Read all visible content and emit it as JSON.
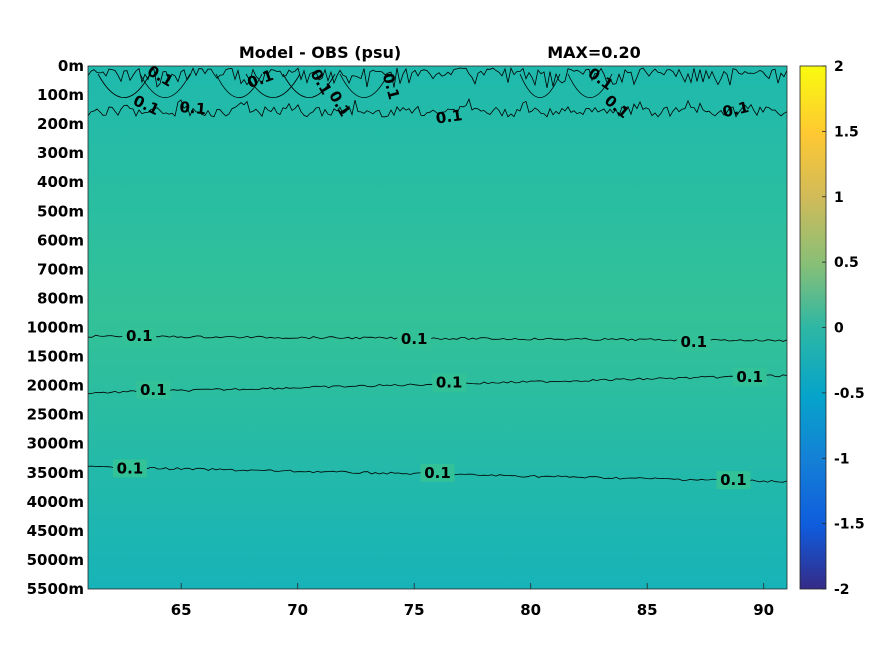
{
  "chart_data": {
    "type": "heatmap",
    "title": "Model - OBS (psu)",
    "annotation": "MAX=0.20",
    "xlim": [
      61,
      91
    ],
    "x_ticks": [
      65,
      70,
      75,
      80,
      85,
      90
    ],
    "y_tick_labels": [
      "0m",
      "100m",
      "200m",
      "300m",
      "400m",
      "500m",
      "600m",
      "700m",
      "800m",
      "1000m",
      "1500m",
      "2000m",
      "2500m",
      "3000m",
      "3500m",
      "4000m",
      "4500m",
      "5000m",
      "5500m"
    ],
    "colorbar": {
      "colormap": "parula",
      "clim": [
        -2,
        2
      ],
      "ticks": [
        "2",
        "1.5",
        "1",
        "0.5",
        "0",
        "-0.5",
        "-1",
        "-1.5",
        "-2"
      ]
    },
    "field_colors": {
      "surface": "#1fb9ad",
      "middle": "#33c197",
      "deep": "#17b3b8"
    },
    "contours": [
      {
        "level": 0.1,
        "style": "noisy",
        "depth_label": "0m-200m",
        "labels": [
          {
            "text": "0.1",
            "x": 63.5,
            "depth_index": 1.35,
            "angle": 25
          },
          {
            "text": "0.1",
            "x": 65.5,
            "depth_index": 1.45,
            "angle": 5
          },
          {
            "text": "0.1",
            "x": 64.1,
            "depth_index": 0.35,
            "angle": 30
          },
          {
            "text": "0.1",
            "x": 68.4,
            "depth_index": 0.45,
            "angle": -20
          },
          {
            "text": "0.1",
            "x": 71.0,
            "depth_index": 0.55,
            "angle": 60
          },
          {
            "text": "0.1",
            "x": 71.8,
            "depth_index": 1.3,
            "angle": 60
          },
          {
            "text": "0.1",
            "x": 74.0,
            "depth_index": 0.7,
            "angle": 75
          },
          {
            "text": "0.1",
            "x": 76.5,
            "depth_index": 1.75,
            "angle": -8
          },
          {
            "text": "0.1",
            "x": 83.0,
            "depth_index": 0.45,
            "angle": 35
          },
          {
            "text": "0.1",
            "x": 83.7,
            "depth_index": 1.4,
            "angle": 40
          },
          {
            "text": "0.1",
            "x": 88.8,
            "depth_index": 1.5,
            "angle": -12
          }
        ]
      },
      {
        "level": 0.1,
        "style": "line",
        "points": [
          [
            61,
            9.3
          ],
          [
            91,
            9.45
          ]
        ],
        "labels": [
          {
            "text": "0.1",
            "x": 63.2,
            "depth_index": 9.3
          },
          {
            "text": "0.1",
            "x": 75.0,
            "depth_index": 9.4
          },
          {
            "text": "0.1",
            "x": 87.0,
            "depth_index": 9.5
          }
        ]
      },
      {
        "level": 0.1,
        "style": "line",
        "points": [
          [
            61,
            11.25
          ],
          [
            91,
            10.65
          ]
        ],
        "labels": [
          {
            "text": "0.1",
            "x": 63.8,
            "depth_index": 11.15
          },
          {
            "text": "0.1",
            "x": 76.5,
            "depth_index": 10.9
          },
          {
            "text": "0.1",
            "x": 89.4,
            "depth_index": 10.7
          }
        ]
      },
      {
        "level": 0.1,
        "style": "line",
        "points": [
          [
            61,
            13.8
          ],
          [
            91,
            14.3
          ]
        ],
        "labels": [
          {
            "text": "0.1",
            "x": 62.8,
            "depth_index": 13.85
          },
          {
            "text": "0.1",
            "x": 76.0,
            "depth_index": 14.0
          },
          {
            "text": "0.1",
            "x": 88.7,
            "depth_index": 14.25
          }
        ]
      }
    ]
  }
}
